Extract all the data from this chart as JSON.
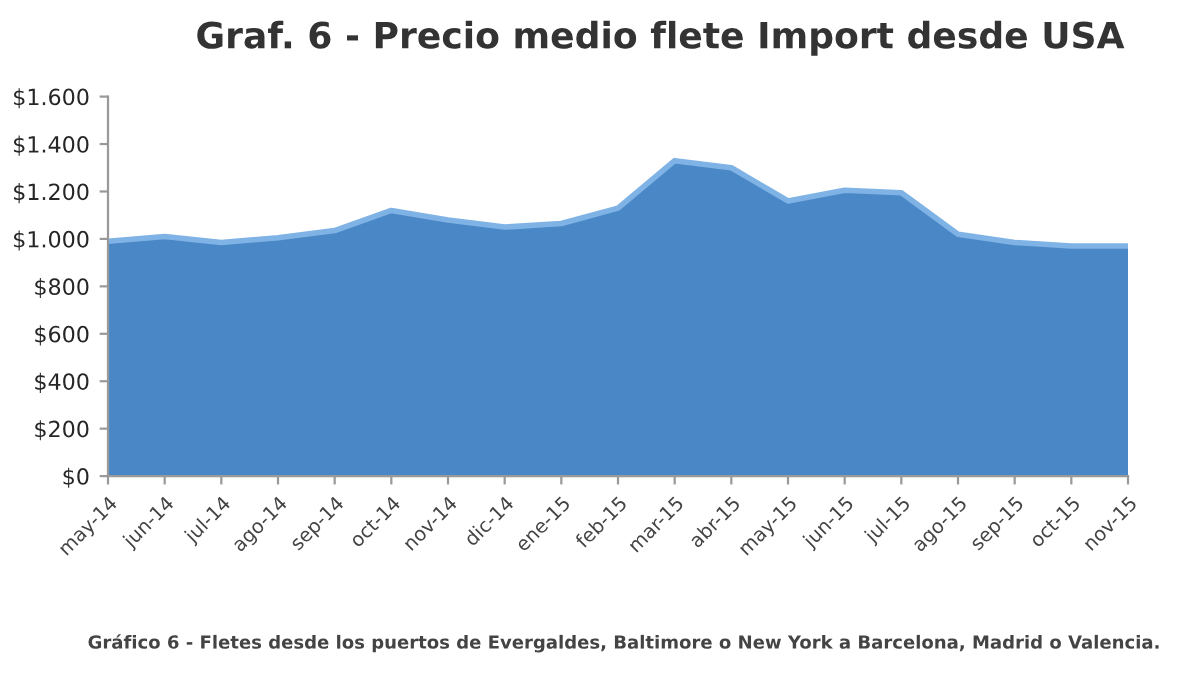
{
  "chart_data": {
    "type": "area",
    "title": "Graf. 6 - Precio medio flete Import desde USA",
    "categories": [
      "may-14",
      "jun-14",
      "jul-14",
      "ago-14",
      "sep-14",
      "oct-14",
      "nov-14",
      "dic-14",
      "ene-15",
      "feb-15",
      "mar-15",
      "abr-15",
      "may-15",
      "jun-15",
      "jul-15",
      "ago-15",
      "sep-15",
      "oct-15",
      "nov-15"
    ],
    "values": [
      990,
      1010,
      985,
      1005,
      1035,
      1120,
      1080,
      1050,
      1065,
      1130,
      1330,
      1300,
      1160,
      1205,
      1195,
      1020,
      985,
      970,
      970
    ],
    "color": "#4a87c6",
    "ylim": [
      0,
      1600
    ],
    "yticks": [
      {
        "value": 0,
        "label": "$0"
      },
      {
        "value": 200,
        "label": "$200"
      },
      {
        "value": 400,
        "label": "$400"
      },
      {
        "value": 600,
        "label": "$600"
      },
      {
        "value": 800,
        "label": "$800"
      },
      {
        "value": 1000,
        "label": "$1.000"
      },
      {
        "value": 1200,
        "label": "$1.200"
      },
      {
        "value": 1400,
        "label": "$1.400"
      },
      {
        "value": 1600,
        "label": "$1.600"
      }
    ],
    "grid": false,
    "annotations": [
      "Gráfico 6 - Fletes desde los puertos de Evergaldes, Baltimore o New York a Barcelona, Madrid o Valencia."
    ]
  }
}
